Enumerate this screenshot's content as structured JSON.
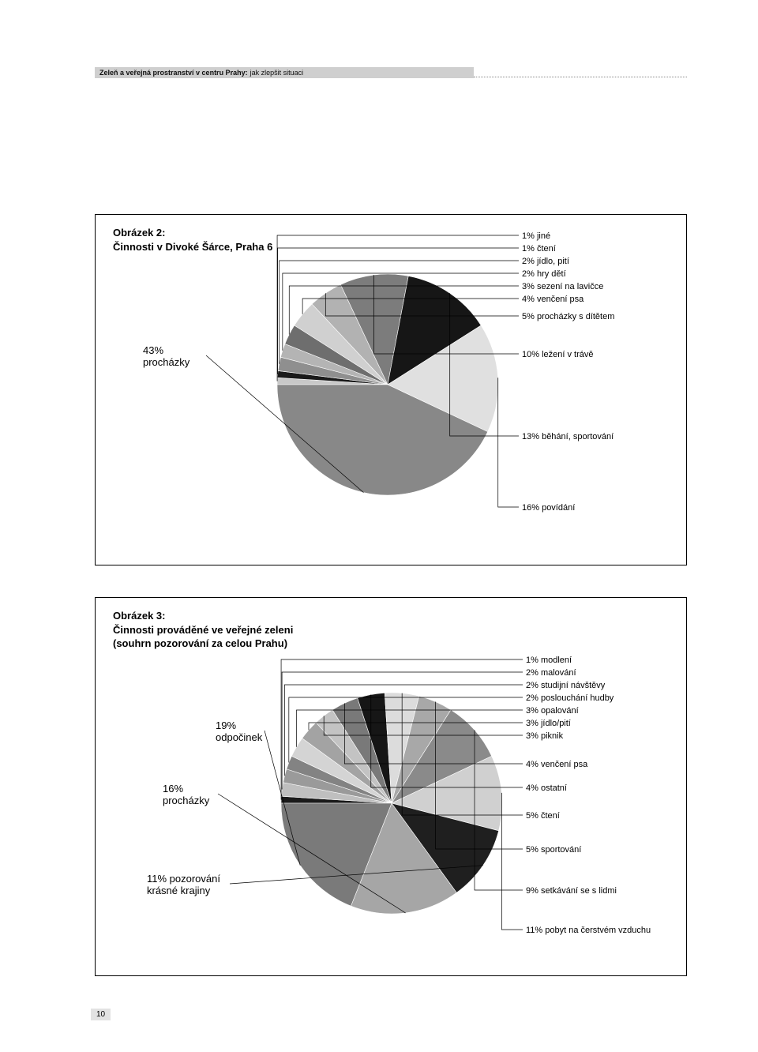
{
  "header": {
    "bold": "Zeleň a veřejná prostranství v centru Prahy:",
    "regular": "jak zlepšit situaci"
  },
  "page_number": "10",
  "figure1": {
    "title_l1": "Obrázek 2:",
    "title_l2": "Činnosti v Divoké Šárce, Praha 6",
    "type": "pie",
    "radius": 140,
    "start_angle_deg": -90,
    "background_color": "#ffffff",
    "leader_color": "#000000",
    "label_fontsize": 11,
    "slices": [
      {
        "value": 1,
        "label": "1% jiné",
        "color": "#c8c8c8"
      },
      {
        "value": 1,
        "label": "1% čtení",
        "color": "#1a1a1a"
      },
      {
        "value": 2,
        "label": "2% jídlo, pití",
        "color": "#8f8f8f"
      },
      {
        "value": 2,
        "label": "2% hry dětí",
        "color": "#b4b4b4"
      },
      {
        "value": 3,
        "label": "3% sezení na lavičce",
        "color": "#6e6e6e"
      },
      {
        "value": 4,
        "label": "4% venčení psa",
        "color": "#d0d0d0"
      },
      {
        "value": 5,
        "label": "5% procházky s dítětem",
        "color": "#b2b2b2"
      },
      {
        "value": 10,
        "label": "10% ležení v trávě",
        "color": "#7c7c7c"
      },
      {
        "value": 13,
        "label": "13% běhání, sportování",
        "color": "#161616"
      },
      {
        "value": 16,
        "label": "16% povídání",
        "color": "#e0e0e0"
      },
      {
        "value": 43,
        "label_l1": "43%",
        "label_l2": "procházky",
        "color": "#888888",
        "left": true
      }
    ]
  },
  "figure2": {
    "title_l1": "Obrázek 3:",
    "title_l2": "Činnosti prováděné ve veřejné zeleni",
    "title_l3": "(souhrn pozorování za celou Prahu)",
    "type": "pie",
    "radius": 140,
    "start_angle_deg": -90,
    "background_color": "#ffffff",
    "leader_color": "#000000",
    "label_fontsize": 11,
    "slices": [
      {
        "value": 1,
        "label": "1% modlení",
        "color": "#1a1a1a"
      },
      {
        "value": 2,
        "label": "2% malování",
        "color": "#bfbfbf"
      },
      {
        "value": 2,
        "label": "2% studijní návštěvy",
        "color": "#9a9a9a"
      },
      {
        "value": 2,
        "label": "2% poslouchání hudby",
        "color": "#838383"
      },
      {
        "value": 3,
        "label": "3% opalování",
        "color": "#d4d4d4"
      },
      {
        "value": 3,
        "label": "3% jídlo/pití",
        "color": "#a3a3a3"
      },
      {
        "value": 3,
        "label": "3% piknik",
        "color": "#c3c3c3"
      },
      {
        "value": 4,
        "label": "4% venčení psa",
        "color": "#797979"
      },
      {
        "value": 4,
        "label": "4% ostatní",
        "color": "#161616"
      },
      {
        "value": 5,
        "label": "5% čtení",
        "color": "#dcdcdc"
      },
      {
        "value": 5,
        "label": "5% sportování",
        "color": "#a8a8a8"
      },
      {
        "value": 9,
        "label": "9% setkávání se s lidmi",
        "color": "#8a8a8a"
      },
      {
        "value": 11,
        "label": "11% pobyt na čerstvém vzduchu",
        "color": "#d0d0d0"
      },
      {
        "value": 11,
        "label_l1": "11% pozorování",
        "label_l2": "krásné krajiny",
        "color": "#1f1f1f",
        "left": true
      },
      {
        "value": 16,
        "label_l1": "16%",
        "label_l2": "procházky",
        "color": "#a6a6a6",
        "left": true
      },
      {
        "value": 19,
        "label_l1": "19%",
        "label_l2": "odpočinek",
        "color": "#7a7a7a",
        "left": true
      }
    ]
  }
}
